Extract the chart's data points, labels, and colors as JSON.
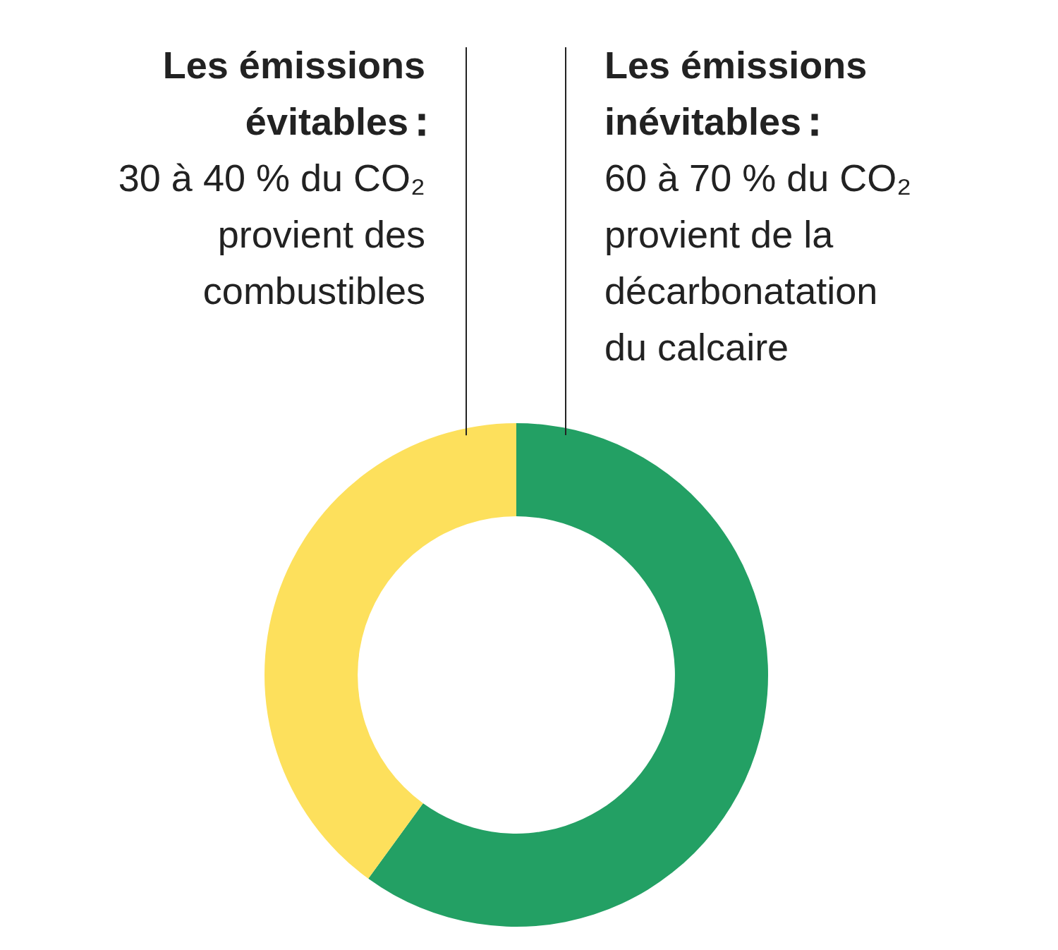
{
  "chart_data": {
    "type": "donut",
    "categories": [
      "Les émissions inévitables",
      "Les émissions évitables"
    ],
    "values": [
      60,
      40
    ],
    "colors": [
      "#23a064",
      "#fde05c"
    ],
    "annotations": [
      "60 à 70 % du CO₂ provient de la décarbonatation du calcaire",
      "30 à 40 % du CO₂ provient des combustibles"
    ],
    "legend": false
  }
}
